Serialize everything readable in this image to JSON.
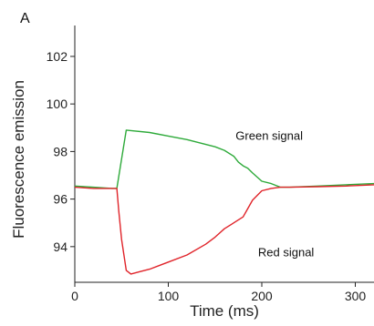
{
  "panel_label": "A",
  "colors": {
    "green": "#2eaa3a",
    "red": "#e0242a",
    "axis": "#222222"
  },
  "chart_data": {
    "type": "line",
    "title": "",
    "xlabel": "Time (ms)",
    "ylabel": "Fluorescence emission",
    "xlim": [
      0,
      320
    ],
    "ylim": [
      92.5,
      103.3
    ],
    "xticks": [
      0,
      100,
      200,
      300
    ],
    "yticks": [
      94,
      96,
      98,
      100,
      102
    ],
    "grid": false,
    "series": [
      {
        "name": "Green signal",
        "color": "#2eaa3a",
        "x": [
          0,
          20,
          40,
          45,
          55,
          60,
          80,
          100,
          120,
          140,
          150,
          160,
          170,
          175,
          180,
          185,
          190,
          200,
          210,
          220,
          230,
          260,
          290,
          320
        ],
        "y": [
          96.55,
          96.5,
          96.45,
          96.45,
          98.9,
          98.88,
          98.8,
          98.65,
          98.5,
          98.3,
          98.2,
          98.05,
          97.8,
          97.55,
          97.4,
          97.3,
          97.1,
          96.75,
          96.65,
          96.5,
          96.5,
          96.55,
          96.6,
          96.65
        ]
      },
      {
        "name": "Red signal",
        "color": "#e0242a",
        "x": [
          0,
          20,
          40,
          45,
          47,
          50,
          55,
          60,
          70,
          80,
          90,
          100,
          120,
          140,
          150,
          160,
          170,
          180,
          185,
          190,
          200,
          210,
          220,
          230,
          260,
          290,
          320
        ],
        "y": [
          96.5,
          96.45,
          96.45,
          96.45,
          95.5,
          94.3,
          93.0,
          92.85,
          92.95,
          93.05,
          93.2,
          93.35,
          93.65,
          94.1,
          94.4,
          94.75,
          95.0,
          95.25,
          95.6,
          95.95,
          96.35,
          96.45,
          96.5,
          96.5,
          96.52,
          96.55,
          96.6
        ]
      }
    ],
    "annotations": [
      {
        "text": "Green signal",
        "series": "Green signal",
        "x": 172,
        "y": 98.5
      },
      {
        "text": "Red signal",
        "series": "Red signal",
        "x": 196,
        "y": 93.6
      }
    ]
  }
}
